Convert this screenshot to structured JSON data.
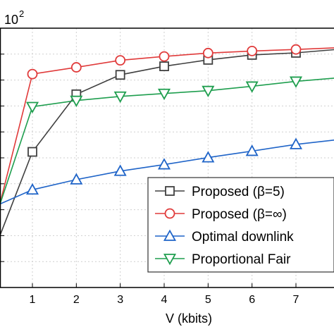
{
  "chart_data": {
    "type": "line",
    "xlabel": "V (kbits)",
    "ylabel": "",
    "y_exponent_label": "10",
    "y_exponent_power": "2",
    "xlim": [
      0.25,
      8
    ],
    "ylim": [
      0,
      1
    ],
    "x_ticks": [
      1,
      2,
      3,
      4,
      5,
      6,
      7
    ],
    "y_ticks": [
      0.1,
      0.2,
      0.3,
      0.4,
      0.5,
      0.6,
      0.7,
      0.8,
      0.9,
      1.0
    ],
    "grid": true,
    "legend_placement": "bottom-right",
    "series": [
      {
        "name": "Proposed (β=5)",
        "color": "#404040",
        "marker": "square",
        "x": [
          0.25,
          1,
          2,
          3,
          4,
          5,
          6,
          7,
          8
        ],
        "y": [
          0.195,
          0.523,
          0.745,
          0.82,
          0.853,
          0.878,
          0.897,
          0.905,
          0.919
        ]
      },
      {
        "name": "Proposed (β=∞)",
        "color": "#e03a3a",
        "marker": "circle",
        "x": [
          0.25,
          1,
          2,
          3,
          4,
          5,
          6,
          7,
          8
        ],
        "y": [
          0.315,
          0.823,
          0.849,
          0.876,
          0.891,
          0.904,
          0.912,
          0.918,
          0.925
        ]
      },
      {
        "name": "Optimal downlink",
        "color": "#1f64c8",
        "marker": "triangle-up",
        "x": [
          0.25,
          1,
          2,
          3,
          4,
          5,
          6,
          7,
          8
        ],
        "y": [
          0.321,
          0.377,
          0.416,
          0.449,
          0.474,
          0.501,
          0.526,
          0.552,
          0.571
        ]
      },
      {
        "name": "Proportional Fair",
        "color": "#1e9e4e",
        "marker": "triangle-down",
        "x": [
          0.25,
          1,
          2,
          3,
          4,
          5,
          6,
          7,
          8
        ],
        "y": [
          0.315,
          0.697,
          0.721,
          0.737,
          0.748,
          0.759,
          0.776,
          0.795,
          0.809
        ]
      }
    ]
  }
}
